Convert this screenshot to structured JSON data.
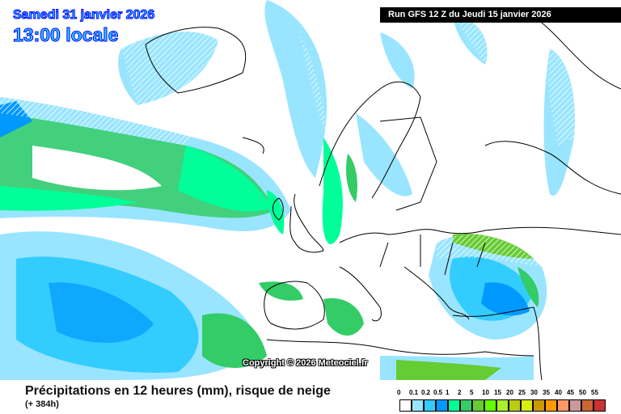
{
  "header": {
    "date": "Samedi 31 janvier 2026",
    "time": "13:00 locale",
    "run": "Run GFS 12 Z du Jeudi 15 janvier 2026"
  },
  "map": {
    "copyright": "Copyright © 2026 Meteociel.fr",
    "snow_hatching_color": "#ffffff"
  },
  "footer": {
    "title": "Précipitations en 12 heures (mm), risque de neige",
    "lead": "(+ 384h)"
  },
  "legend": [
    {
      "label": "0",
      "color": "#ffffff"
    },
    {
      "label": "0.1",
      "color": "#99e5ff"
    },
    {
      "label": "0.2",
      "color": "#33ccff"
    },
    {
      "label": "0.5",
      "color": "#0099ff"
    },
    {
      "label": "1",
      "color": "#00ff99"
    },
    {
      "label": "2",
      "color": "#33cc66"
    },
    {
      "label": "5",
      "color": "#66cc33"
    },
    {
      "label": "10",
      "color": "#66ff00"
    },
    {
      "label": "15",
      "color": "#a8f030"
    },
    {
      "label": "20",
      "color": "#bbcc11"
    },
    {
      "label": "25",
      "color": "#d8ee10"
    },
    {
      "label": "30",
      "color": "#cc9900"
    },
    {
      "label": "35",
      "color": "#ff9900"
    },
    {
      "label": "40",
      "color": "#ff9966"
    },
    {
      "label": "45",
      "color": "#cc9999"
    },
    {
      "label": "50",
      "color": "#cc6633"
    },
    {
      "label": "55",
      "color": "#cc3333"
    }
  ]
}
